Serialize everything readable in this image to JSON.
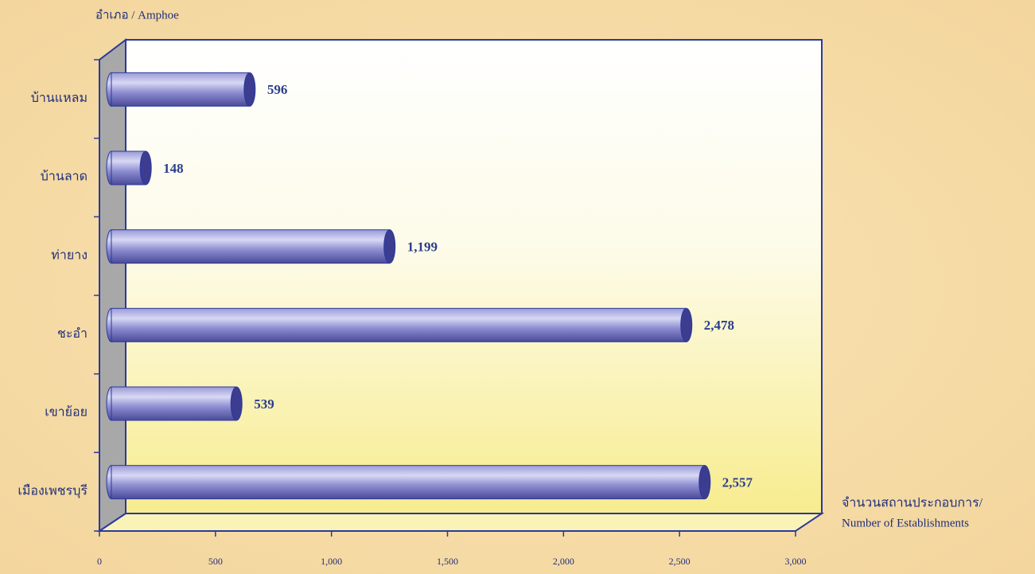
{
  "chart_data": {
    "type": "bar",
    "orientation": "horizontal",
    "y_label": "อำเภอ / Amphoe",
    "x_label": [
      "จำนวนสถานประกอบการ/",
      "Number of Establishments"
    ],
    "categories": [
      "บ้านแหลม",
      "บ้านลาด",
      "ท่ายาง",
      "ชะอำ",
      "เขาย้อย",
      "เมืองเพชรบุรี"
    ],
    "values": [
      596,
      148,
      1199,
      2478,
      539,
      2557
    ],
    "value_labels": [
      "596",
      "148",
      "1,199",
      "2,478",
      "539",
      "2,557"
    ],
    "color": "#6a6ac0",
    "xlim": [
      0,
      3000
    ],
    "xticks": [
      0,
      500,
      {
        "value": 1000,
        "label": "1,000"
      },
      {
        "value": 1500,
        "label": "1,500"
      },
      {
        "value": 2000,
        "label": "2,000"
      },
      {
        "value": 2500,
        "label": "2,500"
      },
      {
        "value": 3000,
        "label": "3,000"
      }
    ],
    "grid": false
  }
}
